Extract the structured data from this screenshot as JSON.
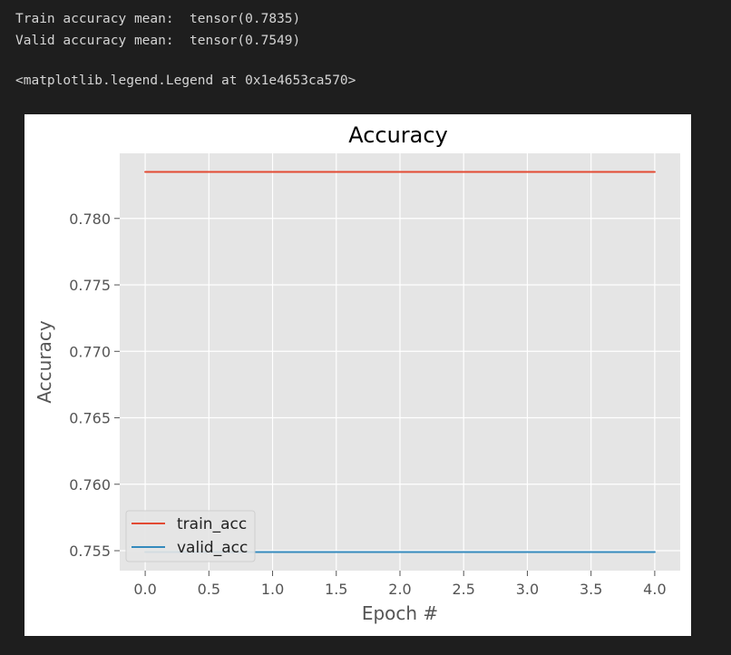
{
  "output": {
    "lines": [
      "Train accuracy mean:  tensor(0.7835)",
      "Valid accuracy mean:  tensor(0.7549)"
    ],
    "repr": "<matplotlib.legend.Legend at 0x1e4653ca570>"
  },
  "chart_data": {
    "type": "line",
    "style": "ggplot",
    "title": "Accuracy",
    "xlabel": "Epoch #",
    "ylabel": "Accuracy",
    "x": [
      0,
      1,
      2,
      3,
      4
    ],
    "series": [
      {
        "name": "train_acc",
        "color": "#E24A33",
        "values": [
          0.7835,
          0.7835,
          0.7835,
          0.7835,
          0.7835
        ]
      },
      {
        "name": "valid_acc",
        "color": "#348ABD",
        "values": [
          0.7549,
          0.7549,
          0.7549,
          0.7549,
          0.7549
        ]
      }
    ],
    "xlim": [
      -0.2,
      4.2
    ],
    "ylim": [
      0.7535,
      0.7849
    ],
    "xticks": [
      "0.0",
      "0.5",
      "1.0",
      "1.5",
      "2.0",
      "2.5",
      "3.0",
      "3.5",
      "4.0"
    ],
    "yticks": [
      "0.755",
      "0.760",
      "0.765",
      "0.770",
      "0.775",
      "0.780"
    ],
    "grid": true,
    "legend_loc": "lower left",
    "colors": {
      "plot_bg": "#E5E5E5",
      "grid": "#FFFFFF",
      "tick_label": "#555555",
      "title": "#000000"
    }
  }
}
